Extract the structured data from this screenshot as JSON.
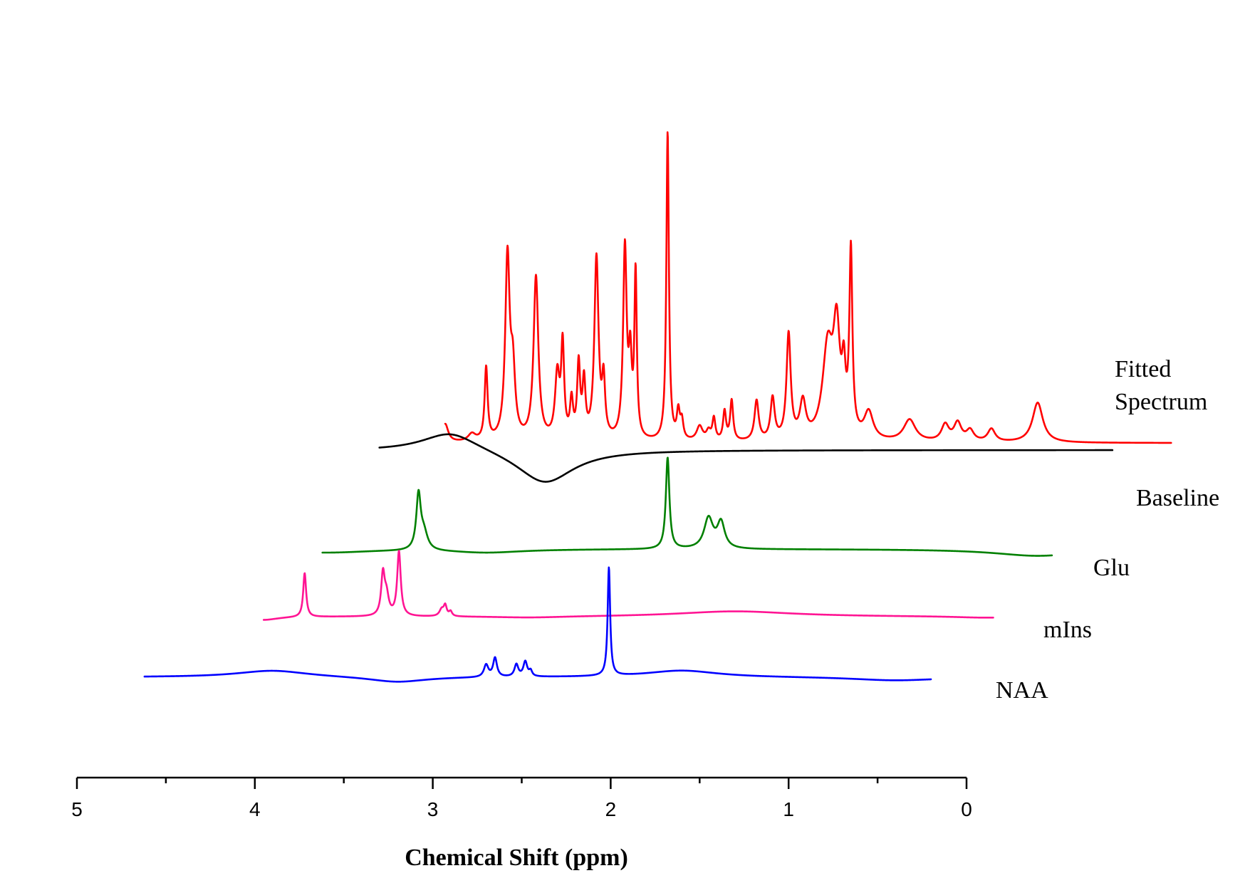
{
  "chart_data": {
    "type": "line",
    "title": "",
    "xlabel": "Chemical Shift (ppm)",
    "ylabel": "",
    "xlim": [
      5,
      0
    ],
    "x_reversed": true,
    "x_ticks": [
      "5",
      "4",
      "3",
      "2",
      "1",
      "0"
    ],
    "stacked_offsets": true,
    "series": [
      {
        "name": "Fitted Spectrum",
        "label_lines": [
          "Fitted",
          "Spectrum"
        ],
        "color": "#ff0000",
        "x_range": [
          2.93,
          -1.15
        ],
        "baseline": 0.05,
        "peaks": [
          [
            2.93,
            0.1,
            0.02
          ],
          [
            2.78,
            0.04,
            0.025
          ],
          [
            2.7,
            0.4,
            0.01
          ],
          [
            2.58,
            1.0,
            0.015
          ],
          [
            2.55,
            0.35,
            0.015
          ],
          [
            2.42,
            0.9,
            0.016
          ],
          [
            2.3,
            0.35,
            0.015
          ],
          [
            2.27,
            0.5,
            0.01
          ],
          [
            2.22,
            0.2,
            0.01
          ],
          [
            2.18,
            0.4,
            0.01
          ],
          [
            2.15,
            0.3,
            0.01
          ],
          [
            2.08,
            1.0,
            0.014
          ],
          [
            2.04,
            0.3,
            0.01
          ],
          [
            1.92,
            1.05,
            0.012
          ],
          [
            1.89,
            0.4,
            0.01
          ],
          [
            1.86,
            0.9,
            0.008
          ],
          [
            1.68,
            1.7,
            0.0085
          ],
          [
            1.62,
            0.15,
            0.01
          ],
          [
            1.6,
            0.1,
            0.01
          ],
          [
            1.5,
            0.08,
            0.02
          ],
          [
            1.45,
            0.05,
            0.015
          ],
          [
            1.42,
            0.12,
            0.01
          ],
          [
            1.36,
            0.16,
            0.01
          ],
          [
            1.32,
            0.22,
            0.01
          ],
          [
            1.18,
            0.22,
            0.014
          ],
          [
            1.09,
            0.23,
            0.014
          ],
          [
            1.0,
            0.58,
            0.014
          ],
          [
            0.92,
            0.2,
            0.02
          ],
          [
            0.78,
            0.5,
            0.035
          ],
          [
            0.73,
            0.55,
            0.022
          ],
          [
            0.69,
            0.3,
            0.012
          ],
          [
            0.65,
            1.0,
            0.01
          ],
          [
            0.55,
            0.15,
            0.03
          ],
          [
            0.32,
            0.12,
            0.04
          ],
          [
            0.12,
            0.09,
            0.025
          ],
          [
            0.05,
            0.1,
            0.025
          ],
          [
            -0.02,
            0.06,
            0.025
          ],
          [
            -0.14,
            0.07,
            0.025
          ],
          [
            -0.4,
            0.22,
            0.035
          ]
        ]
      },
      {
        "name": "Baseline",
        "label_lines": [
          "Baseline"
        ],
        "color": "#000000",
        "x_range": [
          3.3,
          -0.82
        ],
        "baseline": 0.2,
        "peaks": [
          [
            2.9,
            0.07,
            0.2
          ],
          [
            2.37,
            -0.12,
            0.2
          ],
          [
            0.6,
            0.0,
            0.4
          ]
        ]
      },
      {
        "name": "Glu",
        "label_lines": [
          "Glu"
        ],
        "color": "#008000",
        "x_range": [
          3.62,
          -0.48
        ],
        "baseline": 0.2,
        "peaks": [
          [
            3.6,
            -0.05,
            0.3
          ],
          [
            3.08,
            0.8,
            0.015
          ],
          [
            3.05,
            0.25,
            0.025
          ],
          [
            2.7,
            -0.05,
            0.25
          ],
          [
            1.68,
            1.35,
            0.012
          ],
          [
            1.45,
            0.45,
            0.03
          ],
          [
            1.38,
            0.38,
            0.025
          ],
          [
            0.95,
            0.0,
            0.3
          ],
          [
            -0.4,
            -0.1,
            0.3
          ]
        ]
      },
      {
        "name": "mIns",
        "label_lines": [
          "mIns"
        ],
        "color": "#ff1493",
        "x_range": [
          3.95,
          -0.15
        ],
        "baseline": 0.2,
        "peaks": [
          [
            3.95,
            -0.05,
            0.1
          ],
          [
            3.72,
            0.65,
            0.01
          ],
          [
            3.55,
            0.0,
            0.15
          ],
          [
            3.28,
            0.6,
            0.012
          ],
          [
            3.26,
            0.28,
            0.015
          ],
          [
            3.19,
            0.95,
            0.012
          ],
          [
            2.95,
            0.1,
            0.015
          ],
          [
            2.93,
            0.15,
            0.01
          ],
          [
            2.9,
            0.07,
            0.01
          ],
          [
            2.45,
            -0.02,
            0.25
          ],
          [
            1.3,
            0.08,
            0.4
          ],
          [
            -0.1,
            -0.02,
            0.2
          ]
        ]
      },
      {
        "name": "NAA",
        "label_lines": [
          "NAA"
        ],
        "color": "#0000ff",
        "x_range": [
          4.62,
          0.2
        ],
        "baseline": 0.2,
        "peaks": [
          [
            3.9,
            0.1,
            0.25
          ],
          [
            3.2,
            -0.08,
            0.2
          ],
          [
            2.7,
            0.18,
            0.015
          ],
          [
            2.65,
            0.28,
            0.013
          ],
          [
            2.53,
            0.18,
            0.013
          ],
          [
            2.48,
            0.22,
            0.013
          ],
          [
            2.45,
            0.08,
            0.01
          ],
          [
            2.01,
            1.6,
            0.0085
          ],
          [
            1.6,
            0.1,
            0.25
          ],
          [
            0.4,
            -0.05,
            0.3
          ]
        ]
      }
    ]
  }
}
